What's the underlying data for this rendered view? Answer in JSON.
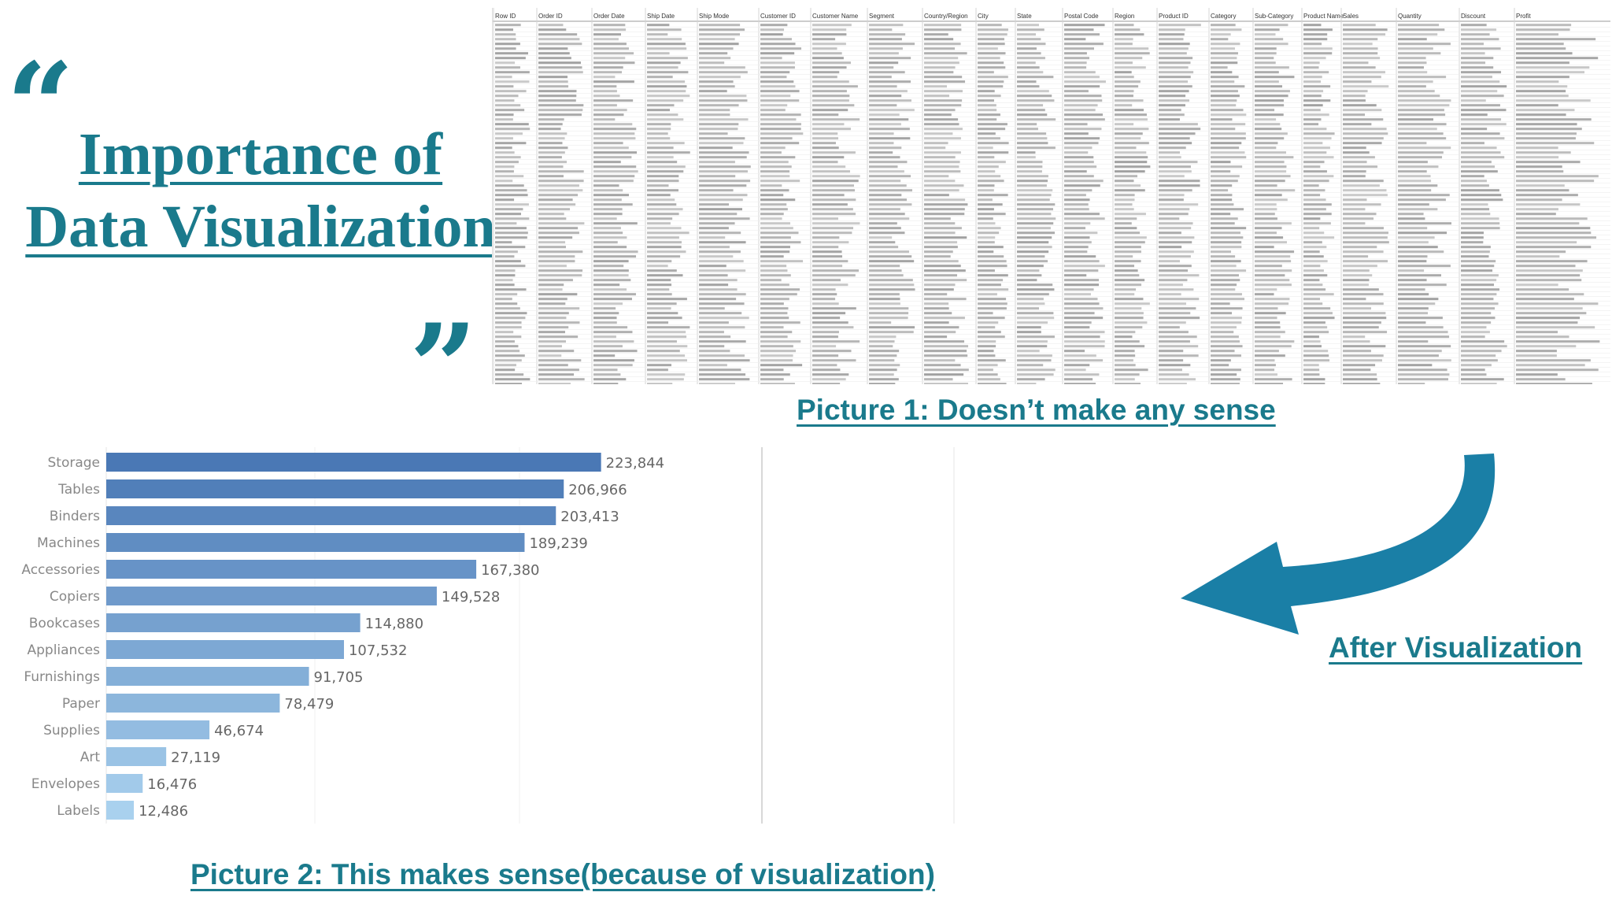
{
  "slide": {
    "title_line1": "Importance of",
    "title_line2": "Data Visualization",
    "quote_open": "“",
    "quote_close": "”",
    "caption1": "Picture 1: Doesn’t make any sense",
    "caption2": "After Visualization",
    "caption3": "Picture 2: This makes sense(because of visualization)",
    "accent_color": "#1a7a8c",
    "arrow_color": "#1a7fa6"
  },
  "spreadsheet": {
    "headers": [
      "Row ID",
      "Order ID",
      "Order Date",
      "Ship Date",
      "Ship Mode",
      "Customer ID",
      "Customer Name",
      "Segment",
      "Country/Region",
      "City",
      "State",
      "Postal Code",
      "Region",
      "Product ID",
      "Category",
      "Sub-Category",
      "Product Name",
      "Sales",
      "Quantity",
      "Discount",
      "Profit"
    ]
  },
  "chart_data": {
    "type": "bar",
    "orientation": "horizontal",
    "categories": [
      "Storage",
      "Tables",
      "Binders",
      "Machines",
      "Accessories",
      "Copiers",
      "Bookcases",
      "Appliances",
      "Furnishings",
      "Paper",
      "Supplies",
      "Art",
      "Envelopes",
      "Labels"
    ],
    "values": [
      223844,
      206966,
      203413,
      189239,
      167380,
      149528,
      114880,
      107532,
      91705,
      78479,
      46674,
      27119,
      16476,
      12486
    ],
    "data_labels": [
      "223,844",
      "206,966",
      "203,413",
      "189,239",
      "167,380",
      "149,528",
      "114,880",
      "107,532",
      "91,705",
      "78,479",
      "46,674",
      "27,119",
      "16,476",
      "12,486"
    ],
    "title": "",
    "xlabel": "",
    "ylabel": "",
    "xlim": [
      0,
      250000
    ],
    "colors": {
      "darkest": "#4a78b5",
      "lightest": "#a9d1ee"
    }
  }
}
